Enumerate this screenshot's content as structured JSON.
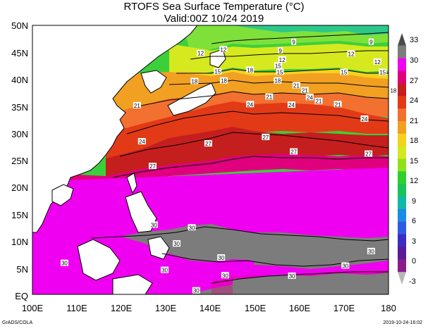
{
  "title": "RTOFS Sea Surface Temperature (°C)",
  "subtitle": "Valid:00Z 10/24 2019",
  "lat_labels": [
    "50N",
    "45N",
    "40N",
    "35N",
    "30N",
    "25N",
    "20N",
    "15N",
    "10N",
    "5N",
    "EQ"
  ],
  "lon_labels": [
    "100E",
    "110E",
    "120E",
    "130E",
    "140E",
    "150E",
    "160E",
    "170E",
    "180"
  ],
  "colorbar": {
    "labels": [
      "33",
      "30",
      "27",
      "24",
      "21",
      "18",
      "15",
      "12",
      "9",
      "6",
      "3",
      "0",
      "-3"
    ],
    "colors": [
      "#4a4a4a",
      "#7c7c7c",
      "#f000f0",
      "#e0007e",
      "#c51e1e",
      "#e23a16",
      "#f27030",
      "#f2a022",
      "#f5d21c",
      "#d3e81f",
      "#8fe21a",
      "#2fd02e",
      "#19c25a",
      "#10b9a6",
      "#1a8ce6",
      "#2f5ae6",
      "#3b2cc2",
      "#5a1b96",
      "#8d1a8a",
      "#b7b7b7"
    ]
  },
  "isotherm_labels": [
    {
      "text": "9",
      "lon": 158.7,
      "lat": 46.9
    },
    {
      "text": "9",
      "lon": 176.1,
      "lat": 46.9
    },
    {
      "text": "12",
      "lon": 142.9,
      "lat": 45.5
    },
    {
      "text": "9",
      "lon": 155.7,
      "lat": 45.3
    },
    {
      "text": "12",
      "lon": 137.8,
      "lat": 44.8
    },
    {
      "text": "12",
      "lon": 171.6,
      "lat": 44.7
    },
    {
      "text": "12",
      "lon": 156.1,
      "lat": 43.6
    },
    {
      "text": "12",
      "lon": 177.5,
      "lat": 43.2
    },
    {
      "text": "15",
      "lon": 155.2,
      "lat": 42.5
    },
    {
      "text": "15",
      "lon": 141.6,
      "lat": 41.4
    },
    {
      "text": "15",
      "lon": 155.6,
      "lat": 41.3
    },
    {
      "text": "18",
      "lon": 148.9,
      "lat": 41.7
    },
    {
      "text": "15",
      "lon": 170.0,
      "lat": 41.3
    },
    {
      "text": "15",
      "lon": 178.7,
      "lat": 41.3
    },
    {
      "text": "18",
      "lon": 155.1,
      "lat": 39.7
    },
    {
      "text": "18",
      "lon": 136.4,
      "lat": 39.6
    },
    {
      "text": "18",
      "lon": 143.0,
      "lat": 39.7
    },
    {
      "text": "21",
      "lon": 159.3,
      "lat": 38.8
    },
    {
      "text": "21",
      "lon": 161.2,
      "lat": 37.9
    },
    {
      "text": "18",
      "lon": 181.1,
      "lat": 37.9
    },
    {
      "text": "21",
      "lon": 153.2,
      "lat": 36.7
    },
    {
      "text": "24",
      "lon": 162.3,
      "lat": 36.6
    },
    {
      "text": "21",
      "lon": 164.3,
      "lat": 35.9
    },
    {
      "text": "24",
      "lon": 148.9,
      "lat": 35.3
    },
    {
      "text": "24",
      "lon": 158.2,
      "lat": 35.2
    },
    {
      "text": "21",
      "lon": 168.6,
      "lat": 35.3
    },
    {
      "text": "21",
      "lon": 123.5,
      "lat": 35.1
    },
    {
      "text": "24",
      "lon": 174.6,
      "lat": 32.6
    },
    {
      "text": "27",
      "lon": 152.4,
      "lat": 29.2
    },
    {
      "text": "24",
      "lon": 124.6,
      "lat": 28.4
    },
    {
      "text": "27",
      "lon": 139.5,
      "lat": 28.0
    },
    {
      "text": "27",
      "lon": 158.7,
      "lat": 26.5
    },
    {
      "text": "27",
      "lon": 175.5,
      "lat": 26.1
    },
    {
      "text": "27",
      "lon": 127.0,
      "lat": 23.8
    },
    {
      "text": "30",
      "lon": 127.3,
      "lat": 12.9
    },
    {
      "text": "30",
      "lon": 135.8,
      "lat": 12.4
    },
    {
      "text": "30",
      "lon": 132.4,
      "lat": 9.4
    },
    {
      "text": "30",
      "lon": 142.4,
      "lat": 6.8
    },
    {
      "text": "30",
      "lon": 176.1,
      "lat": 8.0
    },
    {
      "text": "30",
      "lon": 129.7,
      "lat": 4.5
    },
    {
      "text": "30",
      "lon": 143.3,
      "lat": 3.5
    },
    {
      "text": "30",
      "lon": 158.3,
      "lat": 3.4
    },
    {
      "text": "30",
      "lon": 170.3,
      "lat": 5.3
    },
    {
      "text": "30",
      "lon": 107.2,
      "lat": 5.8
    },
    {
      "text": "30",
      "lon": 136.8,
      "lat": 0.7
    }
  ],
  "footer_left": "GrADS/COLA",
  "footer_right": "2019-10-24-16:02"
}
